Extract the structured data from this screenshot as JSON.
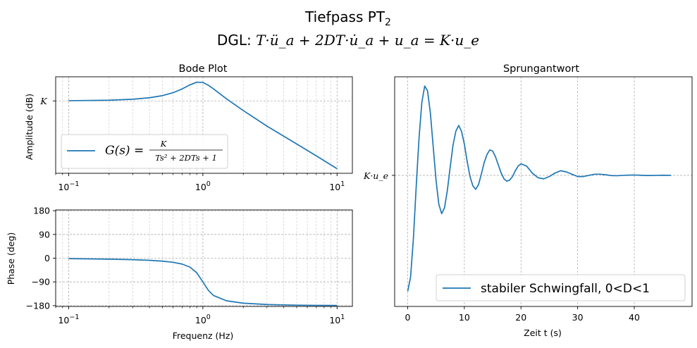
{
  "figure": {
    "title_line1": "Tiefpass PT",
    "title_line1_sub": "2",
    "title_line2_prefix": "DGL: ",
    "title_line2_math": "T·ü_a + 2DT·u̇_a + u_a = K·u_e"
  },
  "colors": {
    "series": "#1f77b4"
  },
  "chart_data": [
    {
      "type": "line",
      "title": "Bode Plot",
      "xlabel": "",
      "ylabel": "Amplitude (dB)",
      "xscale": "log",
      "xlim": [
        0.08,
        13
      ],
      "ylim": [
        -36,
        12
      ],
      "x_tick_labels": [
        "10^-1",
        "10^0",
        "10^1"
      ],
      "y_tick_labels": [
        "K"
      ],
      "grid": true,
      "legend_position": "lower left",
      "series": [
        {
          "name": "G(s) = K / (Ts² + 2DTs + 1)",
          "x": [
            0.1,
            0.2,
            0.3,
            0.4,
            0.5,
            0.6,
            0.7,
            0.8,
            0.9,
            1.0,
            1.1,
            1.2,
            1.5,
            2,
            3,
            5,
            7,
            10
          ],
          "y": [
            0.1,
            0.35,
            0.83,
            1.57,
            2.63,
            4.08,
            5.94,
            7.96,
            9.31,
            9.18,
            7.77,
            5.97,
            1.03,
            -4.79,
            -12.53,
            -21.42,
            -27.32,
            -33.72
          ]
        }
      ]
    },
    {
      "type": "line",
      "title": "",
      "xlabel": "Frequenz (Hz)",
      "ylabel": "Phase (deg)",
      "xscale": "log",
      "xlim": [
        0.08,
        13
      ],
      "ylim": [
        -180,
        180
      ],
      "yticks": [
        180,
        90,
        0,
        -90,
        -180
      ],
      "x_tick_labels": [
        "10^-1",
        "10^0",
        "10^1"
      ],
      "grid": true,
      "series": [
        {
          "name": "",
          "x": [
            0.1,
            0.2,
            0.3,
            0.4,
            0.5,
            0.6,
            0.7,
            0.8,
            0.9,
            1.0,
            1.1,
            1.2,
            1.5,
            2,
            3,
            5,
            7,
            10
          ],
          "y": [
            -1.7,
            -3.6,
            -5.6,
            -8.1,
            -11.3,
            -15.6,
            -22.4,
            -33.7,
            -55.3,
            -90.0,
            -122.4,
            -141.4,
            -161.6,
            -170.6,
            -175.7,
            -178.2,
            -178.8,
            -179.2
          ]
        }
      ]
    },
    {
      "type": "line",
      "title": "Sprungantwort",
      "xlabel": "Zeit t (s)",
      "ylabel": "",
      "xlim": [
        -2.3,
        50.2
      ],
      "ylim": [
        -0.13,
        1.85
      ],
      "xticks": [
        0,
        10,
        20,
        30,
        40
      ],
      "y_tick_labels": [
        "K·u_e"
      ],
      "y_tick_value": 1,
      "grid": true,
      "legend_position": "lower right",
      "series": [
        {
          "name": "stabiler Schwingfall, 0<D<1",
          "x": [
            0,
            0.5,
            1,
            1.5,
            2,
            2.5,
            3,
            3.5,
            4,
            4.5,
            5,
            5.5,
            6,
            6.5,
            7,
            7.5,
            8,
            8.5,
            9,
            9.5,
            10,
            10.5,
            11,
            11.5,
            12,
            12.5,
            13,
            13.5,
            14,
            14.5,
            15,
            15.5,
            16,
            16.5,
            17,
            17.5,
            18,
            18.5,
            19,
            19.5,
            20,
            21,
            22,
            23,
            24,
            25,
            26,
            27,
            28,
            29,
            30,
            31,
            32,
            33,
            34,
            35,
            36,
            37,
            38,
            39,
            40,
            41,
            42,
            43,
            44,
            45,
            46.5
          ],
          "y": [
            0.0,
            0.12,
            0.45,
            0.9,
            1.32,
            1.63,
            1.77,
            1.73,
            1.54,
            1.25,
            0.96,
            0.75,
            0.67,
            0.72,
            0.87,
            1.07,
            1.26,
            1.38,
            1.43,
            1.38,
            1.27,
            1.12,
            0.99,
            0.91,
            0.88,
            0.92,
            1.01,
            1.11,
            1.18,
            1.22,
            1.21,
            1.16,
            1.09,
            1.02,
            0.97,
            0.95,
            0.96,
            0.99,
            1.04,
            1.08,
            1.1,
            1.08,
            1.02,
            0.98,
            0.97,
            0.99,
            1.02,
            1.04,
            1.03,
            1.01,
            0.99,
            0.99,
            1.0,
            1.01,
            1.01,
            1.005,
            0.998,
            0.997,
            1.0,
            1.002,
            1.003,
            1.001,
            0.999,
            0.999,
            1.0,
            1.001,
            1.0
          ]
        }
      ]
    }
  ]
}
